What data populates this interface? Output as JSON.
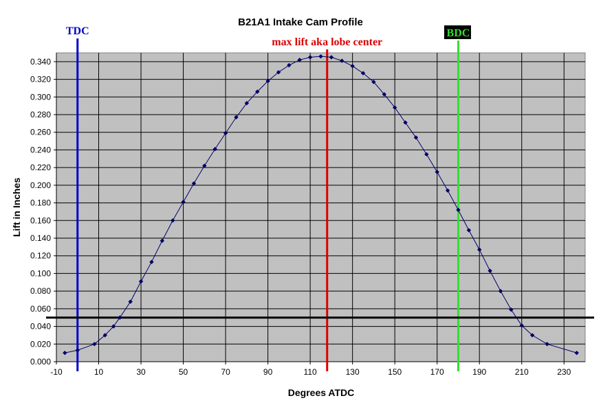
{
  "chart_data": {
    "type": "line",
    "title": "B21A1 Intake Cam Profile",
    "xlabel": "Degrees ATDC",
    "ylabel": "Lift in Inches",
    "xlim": [
      -10,
      240
    ],
    "ylim": [
      0,
      0.35
    ],
    "x_ticks": [
      -10,
      10,
      30,
      50,
      70,
      90,
      110,
      130,
      150,
      170,
      190,
      210,
      230
    ],
    "y_ticks": [
      0,
      0.02,
      0.04,
      0.06,
      0.08,
      0.1,
      0.12,
      0.14,
      0.16,
      0.18,
      0.2,
      0.22,
      0.24,
      0.26,
      0.28,
      0.3,
      0.32,
      0.34
    ],
    "y_tick_labels": [
      "0.000",
      "0.020",
      "0.040",
      "0.060",
      "0.080",
      "0.100",
      "0.120",
      "0.140",
      "0.160",
      "0.180",
      "0.200",
      "0.220",
      "0.240",
      "0.260",
      "0.280",
      "0.300",
      "0.320",
      "0.340"
    ],
    "x_tick_labels": [
      "-10",
      "10",
      "30",
      "50",
      "70",
      "90",
      "110",
      "130",
      "150",
      "170",
      "190",
      "210",
      "230"
    ],
    "grid": true,
    "plot_background": "#c0c0c0",
    "series": [
      {
        "color": "#000066",
        "x": [
          -6,
          0,
          8,
          13,
          17,
          20,
          25,
          30,
          35,
          40,
          45,
          50,
          55,
          60,
          65,
          70,
          75,
          80,
          85,
          90,
          95,
          100,
          105,
          110,
          115,
          120,
          125,
          130,
          135,
          140,
          145,
          150,
          155,
          160,
          165,
          170,
          175,
          180,
          185,
          190,
          195,
          200,
          205,
          210,
          215,
          222,
          236
        ],
        "y": [
          0.01,
          0.013,
          0.02,
          0.03,
          0.04,
          0.05,
          0.068,
          0.091,
          0.113,
          0.137,
          0.16,
          0.181,
          0.202,
          0.222,
          0.241,
          0.259,
          0.277,
          0.293,
          0.306,
          0.318,
          0.328,
          0.336,
          0.342,
          0.345,
          0.346,
          0.345,
          0.341,
          0.335,
          0.327,
          0.317,
          0.303,
          0.288,
          0.271,
          0.254,
          0.235,
          0.215,
          0.194,
          0.172,
          0.149,
          0.127,
          0.103,
          0.08,
          0.059,
          0.041,
          0.03,
          0.02,
          0.01
        ]
      }
    ],
    "reference_lines": [
      {
        "orientation": "vertical",
        "x": 0,
        "color": "#0000cc",
        "label": "TDC",
        "label_bg": ""
      },
      {
        "orientation": "vertical",
        "x": 118,
        "color": "#dd0000",
        "label": "max lift aka lobe center",
        "label_bg": ""
      },
      {
        "orientation": "vertical",
        "x": 180,
        "color": "#33dd33",
        "label": "BDC",
        "label_bg": "#000000"
      },
      {
        "orientation": "horizontal",
        "y": 0.05,
        "color": "#000000",
        "label": "",
        "label_bg": ""
      }
    ]
  }
}
